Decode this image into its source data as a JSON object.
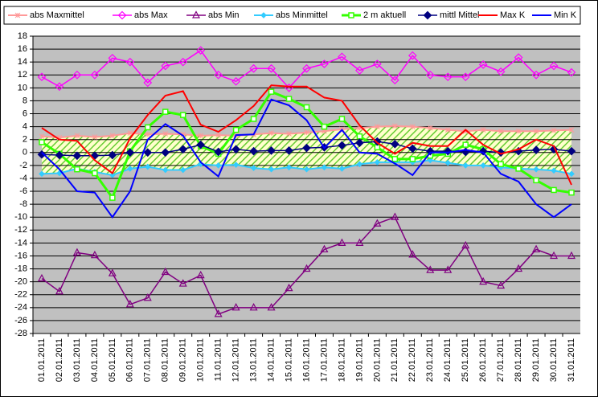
{
  "chart_data": {
    "type": "line",
    "categories": [
      "01.01.2011",
      "02.01.2011",
      "03.01.2011",
      "04.01.2011",
      "05.01.2011",
      "06.01.2011",
      "07.01.2011",
      "08.01.2011",
      "09.01.2011",
      "10.01.2011",
      "11.01.2011",
      "12.01.2011",
      "13.01.2011",
      "14.01.2011",
      "15.01.2011",
      "16.01.2011",
      "17.01.2011",
      "18.01.2011",
      "19.01.2011",
      "20.01.2011",
      "21.01.2011",
      "22.01.2011",
      "23.01.2011",
      "24.01.2011",
      "25.01.2011",
      "26.01.2011",
      "27.01.2011",
      "28.01.2011",
      "29.01.2011",
      "30.01.2011",
      "31.01.2011"
    ],
    "series": [
      {
        "name": "abs Maxmittel",
        "color": "#ff9999",
        "marker": "asterisk",
        "width": 2,
        "values": [
          2.5,
          2.3,
          2.6,
          2.4,
          2.6,
          3,
          2.8,
          2.9,
          2.8,
          2.6,
          2.7,
          2.6,
          2.8,
          3,
          2.9,
          3.1,
          3.3,
          3.6,
          3.8,
          4,
          4.1,
          4,
          3.8,
          3.5,
          3.3,
          3.5,
          3.3,
          3.3,
          3.3,
          3.4,
          3.5
        ]
      },
      {
        "name": "abs Max",
        "color": "#ff00ff",
        "marker": "diamond",
        "width": 1.5,
        "values": [
          11.7,
          10.2,
          12,
          12,
          14.6,
          14,
          10.8,
          13.4,
          14,
          15.8,
          12,
          11,
          13,
          13,
          10,
          13,
          13.7,
          14.8,
          12.7,
          13.7,
          11.2,
          15,
          12,
          11.7,
          11.7,
          13.6,
          12.5,
          14.7,
          12,
          13.4,
          12.4
        ]
      },
      {
        "name": "abs Min",
        "color": "#800080",
        "marker": "triangle",
        "width": 1.5,
        "values": [
          -19.5,
          -21.5,
          -15.5,
          -15.9,
          -18.7,
          -23.5,
          -22.5,
          -18.5,
          -20.3,
          -19,
          -25,
          -24,
          -24,
          -24,
          -21,
          -18,
          -15,
          -14,
          -14,
          -11,
          -10,
          -15.8,
          -18.2,
          -18.2,
          -14.4,
          -20,
          -20.6,
          -18,
          -15,
          -16,
          -16
        ]
      },
      {
        "name": "abs Minmittel",
        "color": "#33ccff",
        "marker": "diamond-small",
        "width": 2,
        "values": [
          -3.3,
          -3.2,
          -2.5,
          -3,
          -3.5,
          -2.5,
          -2.2,
          -2.7,
          -2.7,
          -1.8,
          -2,
          -1.9,
          -2.4,
          -2.6,
          -2.3,
          -2.6,
          -2.3,
          -2.5,
          -1.8,
          -1.5,
          -1.5,
          -1.5,
          -1.2,
          -1.6,
          -2,
          -2,
          -2.3,
          -2.5,
          -2.6,
          -2.8,
          -3.3
        ]
      },
      {
        "name": "2 m aktuell",
        "color": "#33ff00",
        "marker": "square",
        "width": 3,
        "values": [
          1.6,
          -0.2,
          -2.6,
          -3.2,
          -7,
          0.2,
          3.9,
          6.3,
          5.8,
          1,
          -0.2,
          3.5,
          5.2,
          9.4,
          8.3,
          7,
          4,
          5.2,
          2.5,
          0.8,
          -1,
          -1,
          -0.5,
          -0.2,
          1.2,
          0.5,
          -1.8,
          -2.5,
          -4.3,
          -5.8,
          -6.2
        ]
      },
      {
        "name": "mittl Mittel",
        "color": "#000080",
        "marker": "diamond-filled",
        "width": 1.5,
        "values": [
          -0.3,
          -0.4,
          -0.5,
          -0.5,
          -0.4,
          0,
          0,
          0,
          0.5,
          1.2,
          0.1,
          0.5,
          0.2,
          0.3,
          0.3,
          0.7,
          0.8,
          1.1,
          1.5,
          1.7,
          1.3,
          0.6,
          0.2,
          0.2,
          0.1,
          0.2,
          0,
          0.2,
          0.4,
          0.5,
          0.2
        ]
      },
      {
        "name": "Max K",
        "color": "#ff0000",
        "marker": "none",
        "width": 2,
        "values": [
          3.8,
          2,
          1.8,
          -1.2,
          -3.2,
          2.2,
          5.8,
          8.8,
          9.5,
          4.3,
          3.2,
          5,
          7.2,
          10.4,
          10.2,
          10.2,
          8.5,
          8,
          4.2,
          1.5,
          -0.2,
          1.5,
          1,
          1,
          3.5,
          1.2,
          -0.2,
          0.5,
          2,
          1,
          -5
        ]
      },
      {
        "name": "Min K",
        "color": "#0000ff",
        "marker": "none",
        "width": 2,
        "values": [
          0,
          -2.6,
          -6,
          -6.2,
          -10,
          -6,
          2,
          4.4,
          2.6,
          -1.5,
          -3.7,
          2.7,
          2.8,
          8.2,
          7.3,
          5,
          0.7,
          3.5,
          0,
          -0.2,
          -1.7,
          -3.5,
          0,
          0,
          0.4,
          0,
          -3.3,
          -4.5,
          -8,
          -10,
          -8
        ]
      }
    ],
    "ylim": [
      -28,
      18
    ],
    "yticks": [
      -28,
      -26,
      -24,
      -22,
      -20,
      -18,
      -16,
      -14,
      -12,
      -10,
      -8,
      -6,
      -4,
      -2,
      0,
      2,
      4,
      6,
      8,
      10,
      12,
      14,
      16,
      18
    ],
    "grid": true
  }
}
